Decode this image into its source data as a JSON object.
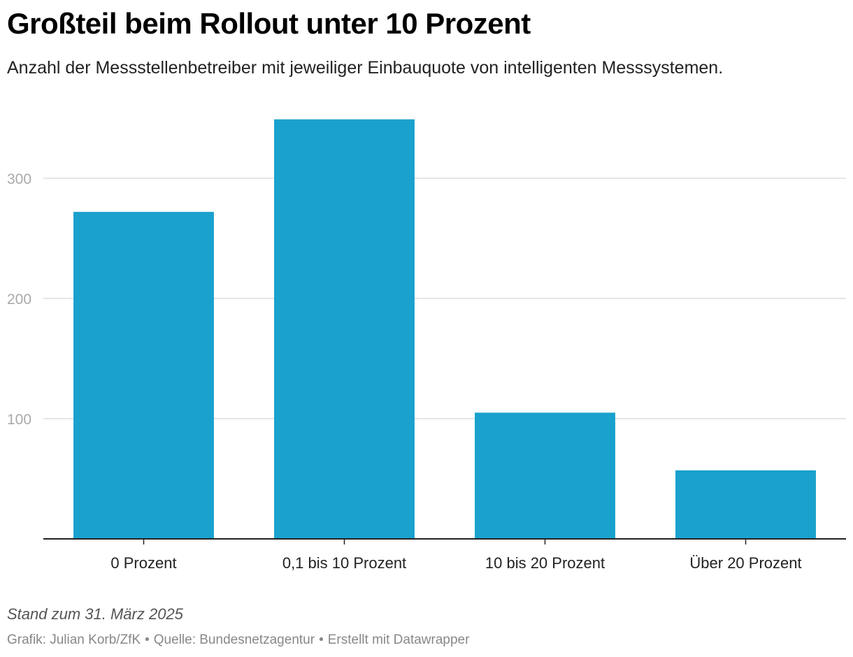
{
  "header": {
    "title": "Großteil beim Rollout unter 10 Prozent",
    "subtitle": "Anzahl der Messstellenbetreiber mit jeweiliger Einbauquote von intelligenten Messsystemen."
  },
  "footer": {
    "note": "Stand zum 31. März 2025",
    "credit": "Grafik: Julian Korb/ZfK",
    "source": "Quelle: Bundesnetzagentur",
    "tool": "Erstellt mit Datawrapper",
    "separator": "•"
  },
  "colors": {
    "bar": "#1aa1cd",
    "gridline": "#dddddd",
    "axis": "#222222",
    "tick_label": "#aaaaaa",
    "category_label": "#222222"
  },
  "chart_data": {
    "type": "bar",
    "categories": [
      "0 Prozent",
      "0,1 bis 10 Prozent",
      "10 bis 20 Prozent",
      "Über 20 Prozent"
    ],
    "values": [
      272,
      349,
      105,
      57
    ],
    "ylim": [
      0,
      349
    ],
    "yticks": [
      100,
      200,
      300
    ],
    "grid": true,
    "title": "Großteil beim Rollout unter 10 Prozent",
    "xlabel": "",
    "ylabel": ""
  }
}
